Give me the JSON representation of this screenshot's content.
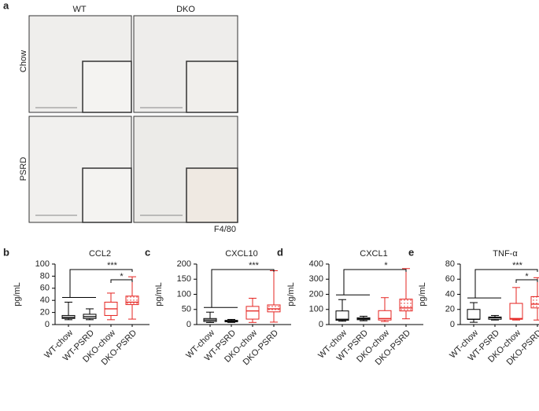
{
  "panel_a": {
    "label": "a",
    "columns": [
      "WT",
      "DKO"
    ],
    "rows": [
      "Chow",
      "PSRD"
    ],
    "stain": "F4/80"
  },
  "chart_data": [
    {
      "type": "box",
      "panel": "b",
      "title": "CCL2",
      "ylabel": "pg/mL",
      "categories": [
        "WT-chow",
        "WT-PSRD",
        "DKO-chow",
        "DKO-PSRD"
      ],
      "colors": [
        "#000000",
        "#000000",
        "#e52421",
        "#e52421"
      ],
      "fills": [
        "none",
        "none",
        "none",
        "dots"
      ],
      "min": [
        8,
        8,
        8,
        9
      ],
      "q1": [
        10,
        10,
        15,
        33
      ],
      "median": [
        12,
        13,
        26,
        37
      ],
      "q3": [
        15,
        17,
        37,
        47
      ],
      "max": [
        37,
        26,
        52,
        79
      ],
      "ylim": [
        0,
        100
      ],
      "yticks": [
        0,
        20,
        40,
        60,
        80,
        100
      ],
      "annotations": [
        "***",
        "*"
      ]
    },
    {
      "type": "box",
      "panel": "c",
      "title": "CXCL10",
      "ylabel": "pg/mL",
      "categories": [
        "WT-chow",
        "WT-PSRD",
        "DKO-chow",
        "DKO-PSRD"
      ],
      "colors": [
        "#000000",
        "#000000",
        "#e52421",
        "#e52421"
      ],
      "fills": [
        "none",
        "none",
        "none",
        "dots"
      ],
      "min": [
        7,
        7,
        7,
        8
      ],
      "q1": [
        10,
        9,
        18,
        42
      ],
      "median": [
        15,
        11,
        45,
        52
      ],
      "q3": [
        20,
        14,
        60,
        65
      ],
      "max": [
        41,
        17,
        87,
        178
      ],
      "ylim": [
        0,
        200
      ],
      "yticks": [
        0,
        50,
        100,
        150,
        200
      ],
      "annotations": [
        "***"
      ]
    },
    {
      "type": "box",
      "panel": "d",
      "title": "CXCL1",
      "ylabel": "pg/mL",
      "categories": [
        "WT-chow",
        "WT-PSRD",
        "DKO-chow",
        "DKO-PSRD"
      ],
      "colors": [
        "#000000",
        "#000000",
        "#e52421",
        "#e52421"
      ],
      "fills": [
        "none",
        "none",
        "none",
        "dots"
      ],
      "min": [
        22,
        25,
        20,
        38
      ],
      "q1": [
        28,
        32,
        30,
        90
      ],
      "median": [
        35,
        38,
        40,
        110
      ],
      "q3": [
        90,
        45,
        92,
        168
      ],
      "max": [
        165,
        55,
        178,
        370
      ],
      "ylim": [
        0,
        400
      ],
      "yticks": [
        0,
        100,
        200,
        300,
        400
      ],
      "annotations": [
        "*"
      ]
    },
    {
      "type": "box",
      "panel": "e",
      "title": "TNF-α",
      "ylabel": "pg/mL",
      "categories": [
        "WT-chow",
        "WT-PSRD",
        "DKO-chow",
        "DKO-PSRD"
      ],
      "colors": [
        "#000000",
        "#000000",
        "#e52421",
        "#e52421"
      ],
      "fills": [
        "none",
        "none",
        "none",
        "dots"
      ],
      "min": [
        3,
        6,
        6,
        6
      ],
      "q1": [
        7,
        7,
        7,
        22
      ],
      "median": [
        7,
        9,
        8,
        27
      ],
      "q3": [
        20,
        10,
        28,
        37
      ],
      "max": [
        29,
        12,
        49,
        62
      ],
      "ylim": [
        0,
        80
      ],
      "yticks": [
        0,
        20,
        40,
        60,
        80
      ],
      "annotations": [
        "***",
        "*"
      ]
    }
  ]
}
